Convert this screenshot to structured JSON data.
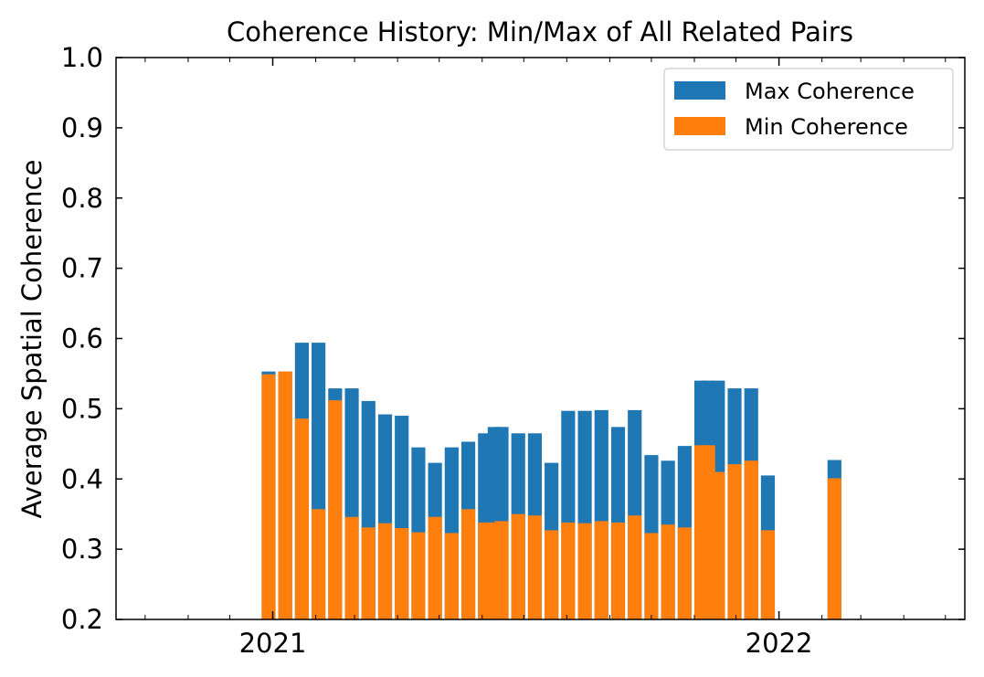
{
  "chart_data": {
    "type": "bar",
    "title": "Coherence History: Min/Max of All Related Pairs",
    "xlabel": "",
    "ylabel": "Average Spatial Coherence",
    "ylim": [
      0.2,
      1.0
    ],
    "xlim": [
      "2020-09-10",
      "2022-05-15"
    ],
    "yticks": [
      0.2,
      0.3,
      0.4,
      0.5,
      0.6,
      0.7,
      0.8,
      0.9,
      1.0
    ],
    "ytick_labels": [
      "0.2",
      "0.3",
      "0.4",
      "0.5",
      "0.6",
      "0.7",
      "0.8",
      "0.9",
      "1.0"
    ],
    "xticks": [
      "2021-01-01",
      "2022-01-01"
    ],
    "xtick_labels": [
      "2021",
      "2022"
    ],
    "minor_xticks": [
      "2020-10-01",
      "2020-11-01",
      "2020-12-01",
      "2021-02-01",
      "2021-03-01",
      "2021-04-01",
      "2021-05-01",
      "2021-06-01",
      "2021-07-01",
      "2021-08-01",
      "2021-09-01",
      "2021-10-01",
      "2021-11-01",
      "2021-12-01",
      "2022-02-01",
      "2022-03-01",
      "2022-04-01",
      "2022-05-01"
    ],
    "grid": false,
    "legend_position": "upper right",
    "x": [
      "2020-12-29",
      "2021-01-10",
      "2021-01-22",
      "2021-02-03",
      "2021-02-15",
      "2021-02-27",
      "2021-03-11",
      "2021-03-23",
      "2021-04-04",
      "2021-04-16",
      "2021-04-28",
      "2021-05-10",
      "2021-05-22",
      "2021-06-03",
      "2021-06-10",
      "2021-06-15",
      "2021-06-27",
      "2021-07-09",
      "2021-07-21",
      "2021-08-02",
      "2021-08-14",
      "2021-08-26",
      "2021-09-07",
      "2021-09-19",
      "2021-10-01",
      "2021-10-13",
      "2021-10-25",
      "2021-11-06",
      "2021-11-11",
      "2021-11-18",
      "2021-11-30",
      "2021-12-12",
      "2021-12-24",
      "2022-02-10"
    ],
    "series": [
      {
        "name": "Max Coherence",
        "color": "#1f77b4",
        "values": [
          0.553,
          0.553,
          0.594,
          0.594,
          0.529,
          0.529,
          0.511,
          0.492,
          0.49,
          0.445,
          0.423,
          0.445,
          0.453,
          0.465,
          0.474,
          0.474,
          0.465,
          0.465,
          0.423,
          0.497,
          0.497,
          0.498,
          0.474,
          0.498,
          0.434,
          0.426,
          0.447,
          0.54,
          0.54,
          0.54,
          0.529,
          0.529,
          0.405,
          0.427
        ]
      },
      {
        "name": "Min Coherence",
        "color": "#ff7f0e",
        "values": [
          0.549,
          0.553,
          0.486,
          0.357,
          0.512,
          0.346,
          0.331,
          0.337,
          0.33,
          0.324,
          0.346,
          0.323,
          0.357,
          0.338,
          0.338,
          0.34,
          0.35,
          0.348,
          0.327,
          0.338,
          0.337,
          0.34,
          0.338,
          0.348,
          0.323,
          0.335,
          0.331,
          0.448,
          0.448,
          0.41,
          0.421,
          0.426,
          0.327,
          0.401
        ]
      }
    ]
  }
}
